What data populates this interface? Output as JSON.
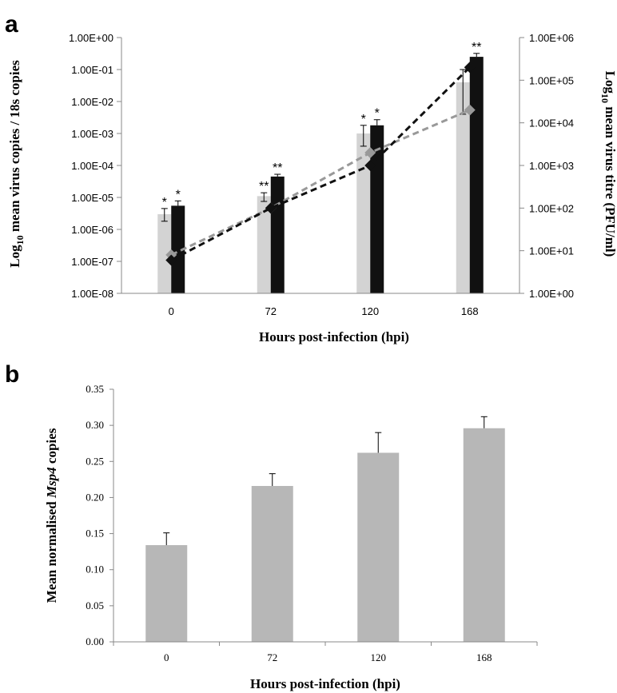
{
  "chart_data": [
    {
      "panel": "a",
      "type": "bar",
      "categories": [
        "0",
        "72",
        "120",
        "168"
      ],
      "xlabel": "Hours post-infection (hpi)",
      "ylabel_left": {
        "prefix": "Log",
        "sub": "10",
        "text": " mean virus copies / 18s copies"
      },
      "ylabel_right": {
        "prefix": "Log",
        "sub": "10",
        "text": " mean virus titre (PFU/ml)"
      },
      "left_axis": {
        "scale": "log",
        "ylim": [
          1e-08,
          1
        ],
        "tick_labels": [
          "1.00E-08",
          "1.00E-07",
          "1.00E-06",
          "1.00E-05",
          "1.00E-04",
          "1.00E-03",
          "1.00E-02",
          "1.00E-01",
          "1.00E+00"
        ]
      },
      "right_axis": {
        "scale": "log",
        "ylim": [
          1,
          1000000
        ],
        "tick_labels": [
          "1.00E+00",
          "1.00E+01",
          "1.00E+02",
          "1.00E+03",
          "1.00E+04",
          "1.00E+05",
          "1.00E+06"
        ]
      },
      "bar_series": [
        {
          "color": "#d3d3d3",
          "values": [
            3e-06,
            1.1e-05,
            0.001,
            0.04
          ],
          "err_low": [
            1.8e-06,
            7.5e-06,
            0.0004,
            0.004
          ],
          "err_high": [
            4.5e-06,
            1.4e-05,
            0.0018,
            0.1
          ],
          "stars": [
            "*",
            "**",
            "*",
            ""
          ]
        },
        {
          "color": "#111111",
          "values": [
            5.5e-06,
            4.5e-05,
            0.0018,
            0.25
          ],
          "err_low": [
            5.5e-06,
            4.5e-05,
            0.0018,
            0.25
          ],
          "err_high": [
            7.8e-06,
            5.3e-05,
            0.0027,
            0.32
          ],
          "stars": [
            "*",
            "**",
            "*",
            "**"
          ]
        }
      ],
      "line_series": [
        {
          "color": "#999999",
          "values": [
            8,
            100,
            2000,
            20000
          ]
        },
        {
          "color": "#111111",
          "values": [
            6,
            100,
            1000,
            200000
          ]
        }
      ]
    },
    {
      "panel": "b",
      "type": "bar",
      "categories": [
        "0",
        "72",
        "120",
        "168"
      ],
      "values": [
        0.134,
        0.216,
        0.262,
        0.296
      ],
      "err_high": [
        0.151,
        0.233,
        0.29,
        0.312
      ],
      "ylim": [
        0,
        0.35
      ],
      "tick_labels": [
        "0.00",
        "0.05",
        "0.10",
        "0.15",
        "0.20",
        "0.25",
        "0.30",
        "0.35"
      ],
      "bar_color": "#b7b7b7",
      "xlabel": "Hours post-infection (hpi)",
      "ylabel": {
        "before": "Mean normalised ",
        "italic": "Msp4",
        "after": " copies"
      }
    }
  ]
}
